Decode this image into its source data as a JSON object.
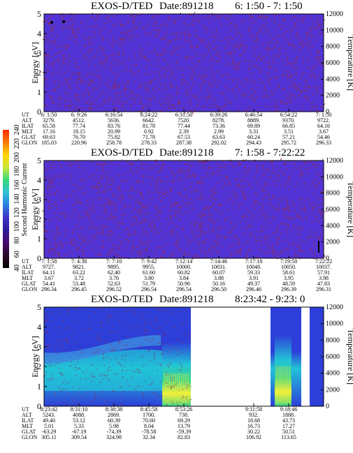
{
  "instrument": "EXOS-D/TED",
  "colors": {
    "background": "#5234d6",
    "speckle": "#8a2a4c",
    "white": "#ffffff",
    "cyan": "#22c3d8",
    "green": "#3bd68a",
    "yellow": "#f2f03a",
    "lightblue": "#3c8ee0",
    "blue": "#2d3fd8"
  },
  "colorbar": {
    "label": "Second Harmonic Current",
    "ticks": [
      "40",
      "60",
      "80",
      "100",
      "120",
      "140",
      "160",
      "180",
      "200",
      "220",
      "240"
    ],
    "stops": [
      "#000000",
      "#2a0a28",
      "#4a0a6e",
      "#2d1d9a",
      "#3f33c8",
      "#2a7ee0",
      "#30c0d8",
      "#38d87c",
      "#c8e83a",
      "#ffd400",
      "#ff7a00",
      "#ff2a00"
    ]
  },
  "panels": [
    {
      "title_prefix": "EXOS-D/TED",
      "date_label": "Date:891218",
      "time_range": "6: 1:50 - 7: 1:50",
      "y_label": "Energy [eV]",
      "y2_label": "Temperature [K]",
      "y_ticks": [
        "0",
        "1",
        "2",
        "3",
        "4",
        "5"
      ],
      "y2_ticks": [
        "0",
        "2000",
        "4000",
        "6000",
        "8000",
        "10000",
        "12000"
      ],
      "row_labels": [
        "UT",
        "ALT",
        "ILAT",
        "MLT",
        "GLAT",
        "GLON"
      ],
      "columns": [
        [
          "6: 1:50",
          "3279.",
          "65.58",
          "17.16",
          "69.63",
          "185.03"
        ],
        [
          "6: 9:26",
          "4512.",
          "77.74",
          "18.15",
          "76.70",
          "220.96"
        ],
        [
          "6:16:54",
          "5636.",
          "83.76",
          "20.99",
          "75.82",
          "258.78"
        ],
        [
          "6:24:22",
          "6642.",
          "81.78",
          "0.92",
          "71.78",
          "278.33"
        ],
        [
          "6:31:50",
          "7520.",
          "77.44",
          "2.39",
          "67.53",
          "287.38"
        ],
        [
          "6:39:26",
          "8278.",
          "73.36",
          "2.99",
          "63.63",
          "292.02"
        ],
        [
          "6:46:54",
          "8889.",
          "69.89",
          "3.31",
          "60.24",
          "294.43"
        ],
        [
          "6:54:22",
          "9370.",
          "66.85",
          "3.51",
          "57.21",
          "295.72"
        ],
        [
          "7: 1:50",
          "9722.",
          "64.16",
          "3.67",
          "54.46",
          "296.33"
        ]
      ]
    },
    {
      "title_prefix": "EXOS-D/TED",
      "date_label": "Date:891218",
      "time_range": "7: 1:58 - 7:22:22",
      "y_label": "Energy [eV]",
      "y2_label": "Temperature [K]",
      "y_ticks": [
        "0",
        "1",
        "2",
        "3",
        "4",
        "5"
      ],
      "y2_ticks": [
        "0",
        "2000",
        "4000",
        "6000",
        "8000",
        "10000",
        "12000"
      ],
      "row_labels": [
        "UT",
        "ALT",
        "ILAT",
        "MLT",
        "GLAT",
        "GLON"
      ],
      "columns": [
        [
          "7: 1:58",
          "9727.",
          "64.11",
          "3.67",
          "54.41",
          "296.34"
        ],
        [
          "7: 4:38",
          "9821.",
          "63.22",
          "3.72",
          "53.48",
          "296.45"
        ],
        [
          "7: 7:10",
          "9895.",
          "62.40",
          "3.76",
          "52.63",
          "296.52"
        ],
        [
          "7: 9:42",
          "9955.",
          "61.60",
          "3.80",
          "51.79",
          "296.54"
        ],
        [
          "7:12:14",
          "10000.",
          "60.82",
          "3.84",
          "50.96",
          "296.54"
        ],
        [
          "7:14:46",
          "10031.",
          "60.07",
          "3.88",
          "50.16",
          "296.50"
        ],
        [
          "7:17:18",
          "10048.",
          "59.33",
          "3.91",
          "49.37",
          "296.46"
        ],
        [
          "7:19:50",
          "10050.",
          "58.61",
          "3.95",
          "48.59",
          "296.39"
        ],
        [
          "7:22:22",
          "10037.",
          "57.91",
          "3.98",
          "47.83",
          "296.31"
        ]
      ]
    },
    {
      "title_prefix": "EXOS-D/TED",
      "date_label": "Date:891218",
      "time_range": "8:23:42 - 9:23: 0",
      "y_label": "Energy [eV]",
      "y2_label": "Temperature [K]",
      "y_ticks": [
        "0",
        "1",
        "2",
        "3",
        "4",
        "5"
      ],
      "y2_ticks": [
        "0",
        "2000",
        "4000",
        "6000",
        "8000",
        "10000",
        "12000"
      ],
      "row_labels": [
        "UT",
        "ALT",
        "ILAT",
        "MLT",
        "GLAT",
        "GLON"
      ],
      "columns": [
        [
          "8:23:42",
          "5243.",
          "49.40",
          "5.01",
          "-63.29",
          "305.11"
        ],
        [
          "8:31:10",
          "4088.",
          "53.12",
          "5.33",
          "-67.19",
          "309.54"
        ],
        [
          "8:38:38",
          "2869.",
          "60.39",
          "5.98",
          "-74.39",
          "324.98"
        ],
        [
          "8:45:58",
          "1700.",
          "70.60",
          "8.04",
          "-78.58",
          "32.34"
        ],
        [
          "8:53:26",
          "738.",
          "69.29",
          "13.79",
          "-59.39",
          "82.83"
        ],
        [
          "",
          "",
          "",
          "",
          "",
          ""
        ],
        [
          "9:11:58",
          "932.",
          "18.68",
          "16.73",
          "30.22",
          "106.92"
        ],
        [
          "9:18:46",
          "1888.",
          "43.73",
          "17.27",
          "50.51",
          "113.65"
        ],
        [
          "",
          "",
          "",
          "",
          "",
          ""
        ]
      ]
    }
  ],
  "chart_data": [
    {
      "type": "heatmap",
      "title": "EXOS-D/TED  Date:891218  6: 1:50 - 7: 1:50",
      "ylabel": "Energy [eV]",
      "y2label": "Temperature [K]",
      "ylim": [
        0,
        5
      ],
      "y2lim": [
        0,
        12000
      ],
      "x_ticks": [
        "6: 1:50",
        "6: 9:26",
        "6:16:54",
        "6:24:22",
        "6:31:50",
        "6:39:26",
        "6:46:54",
        "6:54:22",
        "7: 1:50"
      ],
      "fill": "uniform low intensity across all energies"
    },
    {
      "type": "heatmap",
      "title": "EXOS-D/TED  Date:891218  7: 1:58 - 7:22:22",
      "ylabel": "Energy [eV]",
      "y2label": "Temperature [K]",
      "ylim": [
        0,
        5
      ],
      "y2lim": [
        0,
        12000
      ],
      "x_ticks": [
        "7: 1:58",
        "7: 4:38",
        "7: 7:10",
        "7: 9:42",
        "7:12:14",
        "7:14:46",
        "7:17:18",
        "7:19:50",
        "7:22:22"
      ],
      "fill": "uniform low intensity across all energies"
    },
    {
      "type": "heatmap",
      "title": "EXOS-D/TED  Date:891218  8:23:42 - 9:23: 0",
      "ylabel": "Energy [eV]",
      "y2label": "Temperature [K]",
      "ylim": [
        0,
        5
      ],
      "y2lim": [
        0,
        12000
      ],
      "x_ticks": [
        "8:23:42",
        "8:31:10",
        "8:38:38",
        "8:45:58",
        "8:53:26",
        "9:11:58",
        "9:18:46"
      ],
      "data_gaps": [
        [
          "8:53:26",
          "9:11:58"
        ],
        [
          "9:21:20",
          "9:23: 0"
        ]
      ],
      "fill": "enhanced emission below ~2.5 eV; bright band near 8:47-8:52 and 9:12-9:14"
    }
  ]
}
